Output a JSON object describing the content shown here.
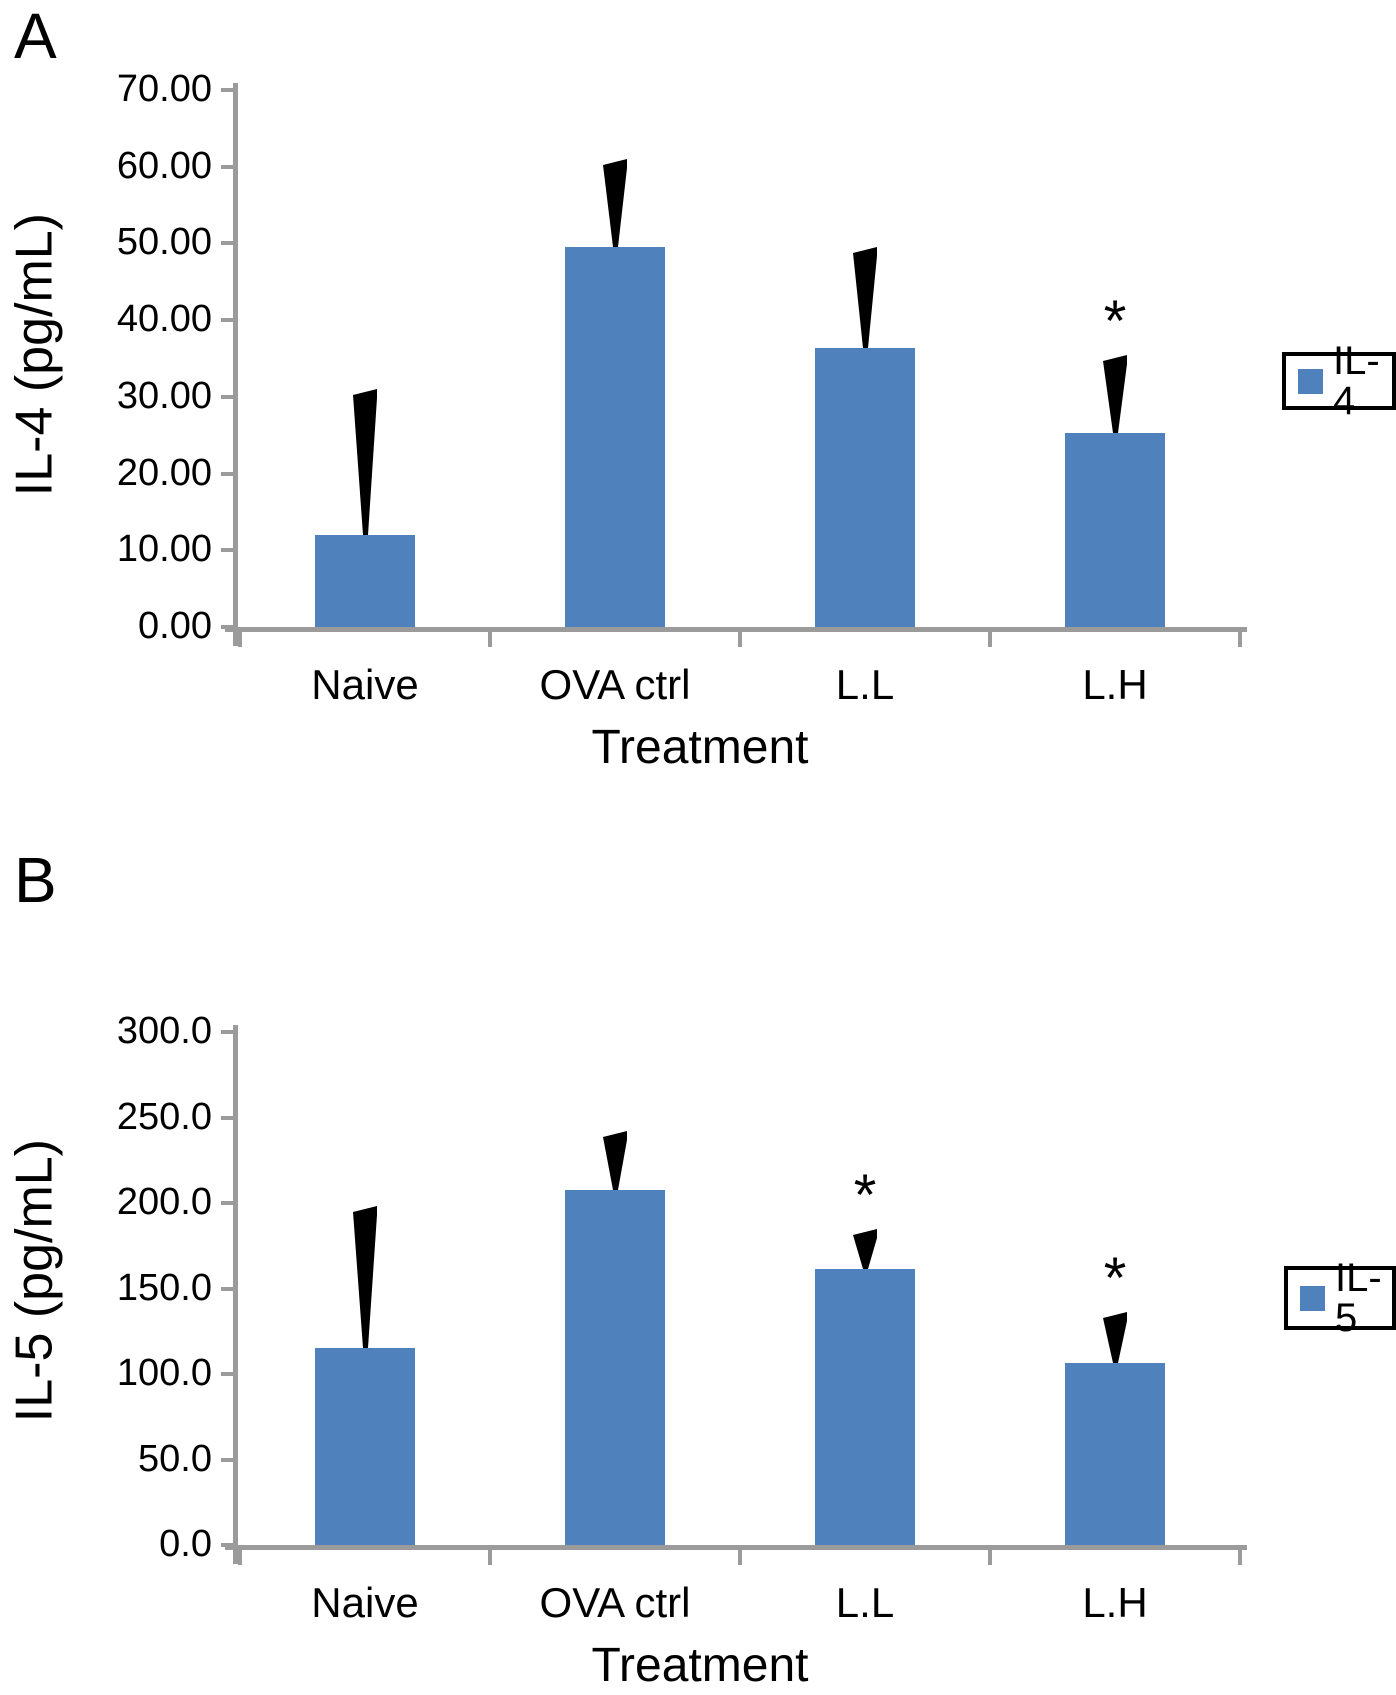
{
  "figure": {
    "panels": [
      {
        "label": "A",
        "legend_label": "IL-4"
      },
      {
        "label": "B",
        "legend_label": "IL-5"
      }
    ]
  },
  "chart_data": [
    {
      "type": "bar",
      "title": "",
      "categories": [
        "Naive",
        "OVA ctrl",
        "L.L",
        "L.H"
      ],
      "values": [
        12.0,
        49.5,
        36.4,
        25.3
      ],
      "errors_plus": [
        19.0,
        11.5,
        13.1,
        10.2
      ],
      "significance": [
        "",
        "",
        "",
        "*"
      ],
      "xlabel": "Treatment",
      "ylabel": "IL-4 (pg/mL)",
      "ylim": [
        0,
        70
      ],
      "ytick_step": 10,
      "ytick_labels": [
        "0.00",
        "10.00",
        "20.00",
        "30.00",
        "40.00",
        "50.00",
        "60.00",
        "70.00"
      ],
      "legend": [
        "IL-4"
      ],
      "legend_position": "right",
      "bar_color": "#4F81BD",
      "axis_color": "#9B9B9B",
      "error_bar_color": "#000000",
      "grid": false
    },
    {
      "type": "bar",
      "title": "",
      "categories": [
        "Naive",
        "OVA ctrl",
        "L.L",
        "L.H"
      ],
      "values": [
        115,
        207.5,
        161.5,
        106.5
      ],
      "errors_plus": [
        83,
        34.5,
        23.5,
        29.5
      ],
      "significance": [
        "",
        "",
        "*",
        "*"
      ],
      "xlabel": "Treatment",
      "ylabel": "IL-5 (pg/mL)",
      "ylim": [
        0,
        300
      ],
      "ytick_step": 50,
      "ytick_labels": [
        "0.0",
        "50.0",
        "100.0",
        "150.0",
        "200.0",
        "250.0",
        "300.0"
      ],
      "legend": [
        "IL-5"
      ],
      "legend_position": "right",
      "bar_color": "#4F81BD",
      "axis_color": "#9B9B9B",
      "error_bar_color": "#000000",
      "grid": false
    }
  ]
}
